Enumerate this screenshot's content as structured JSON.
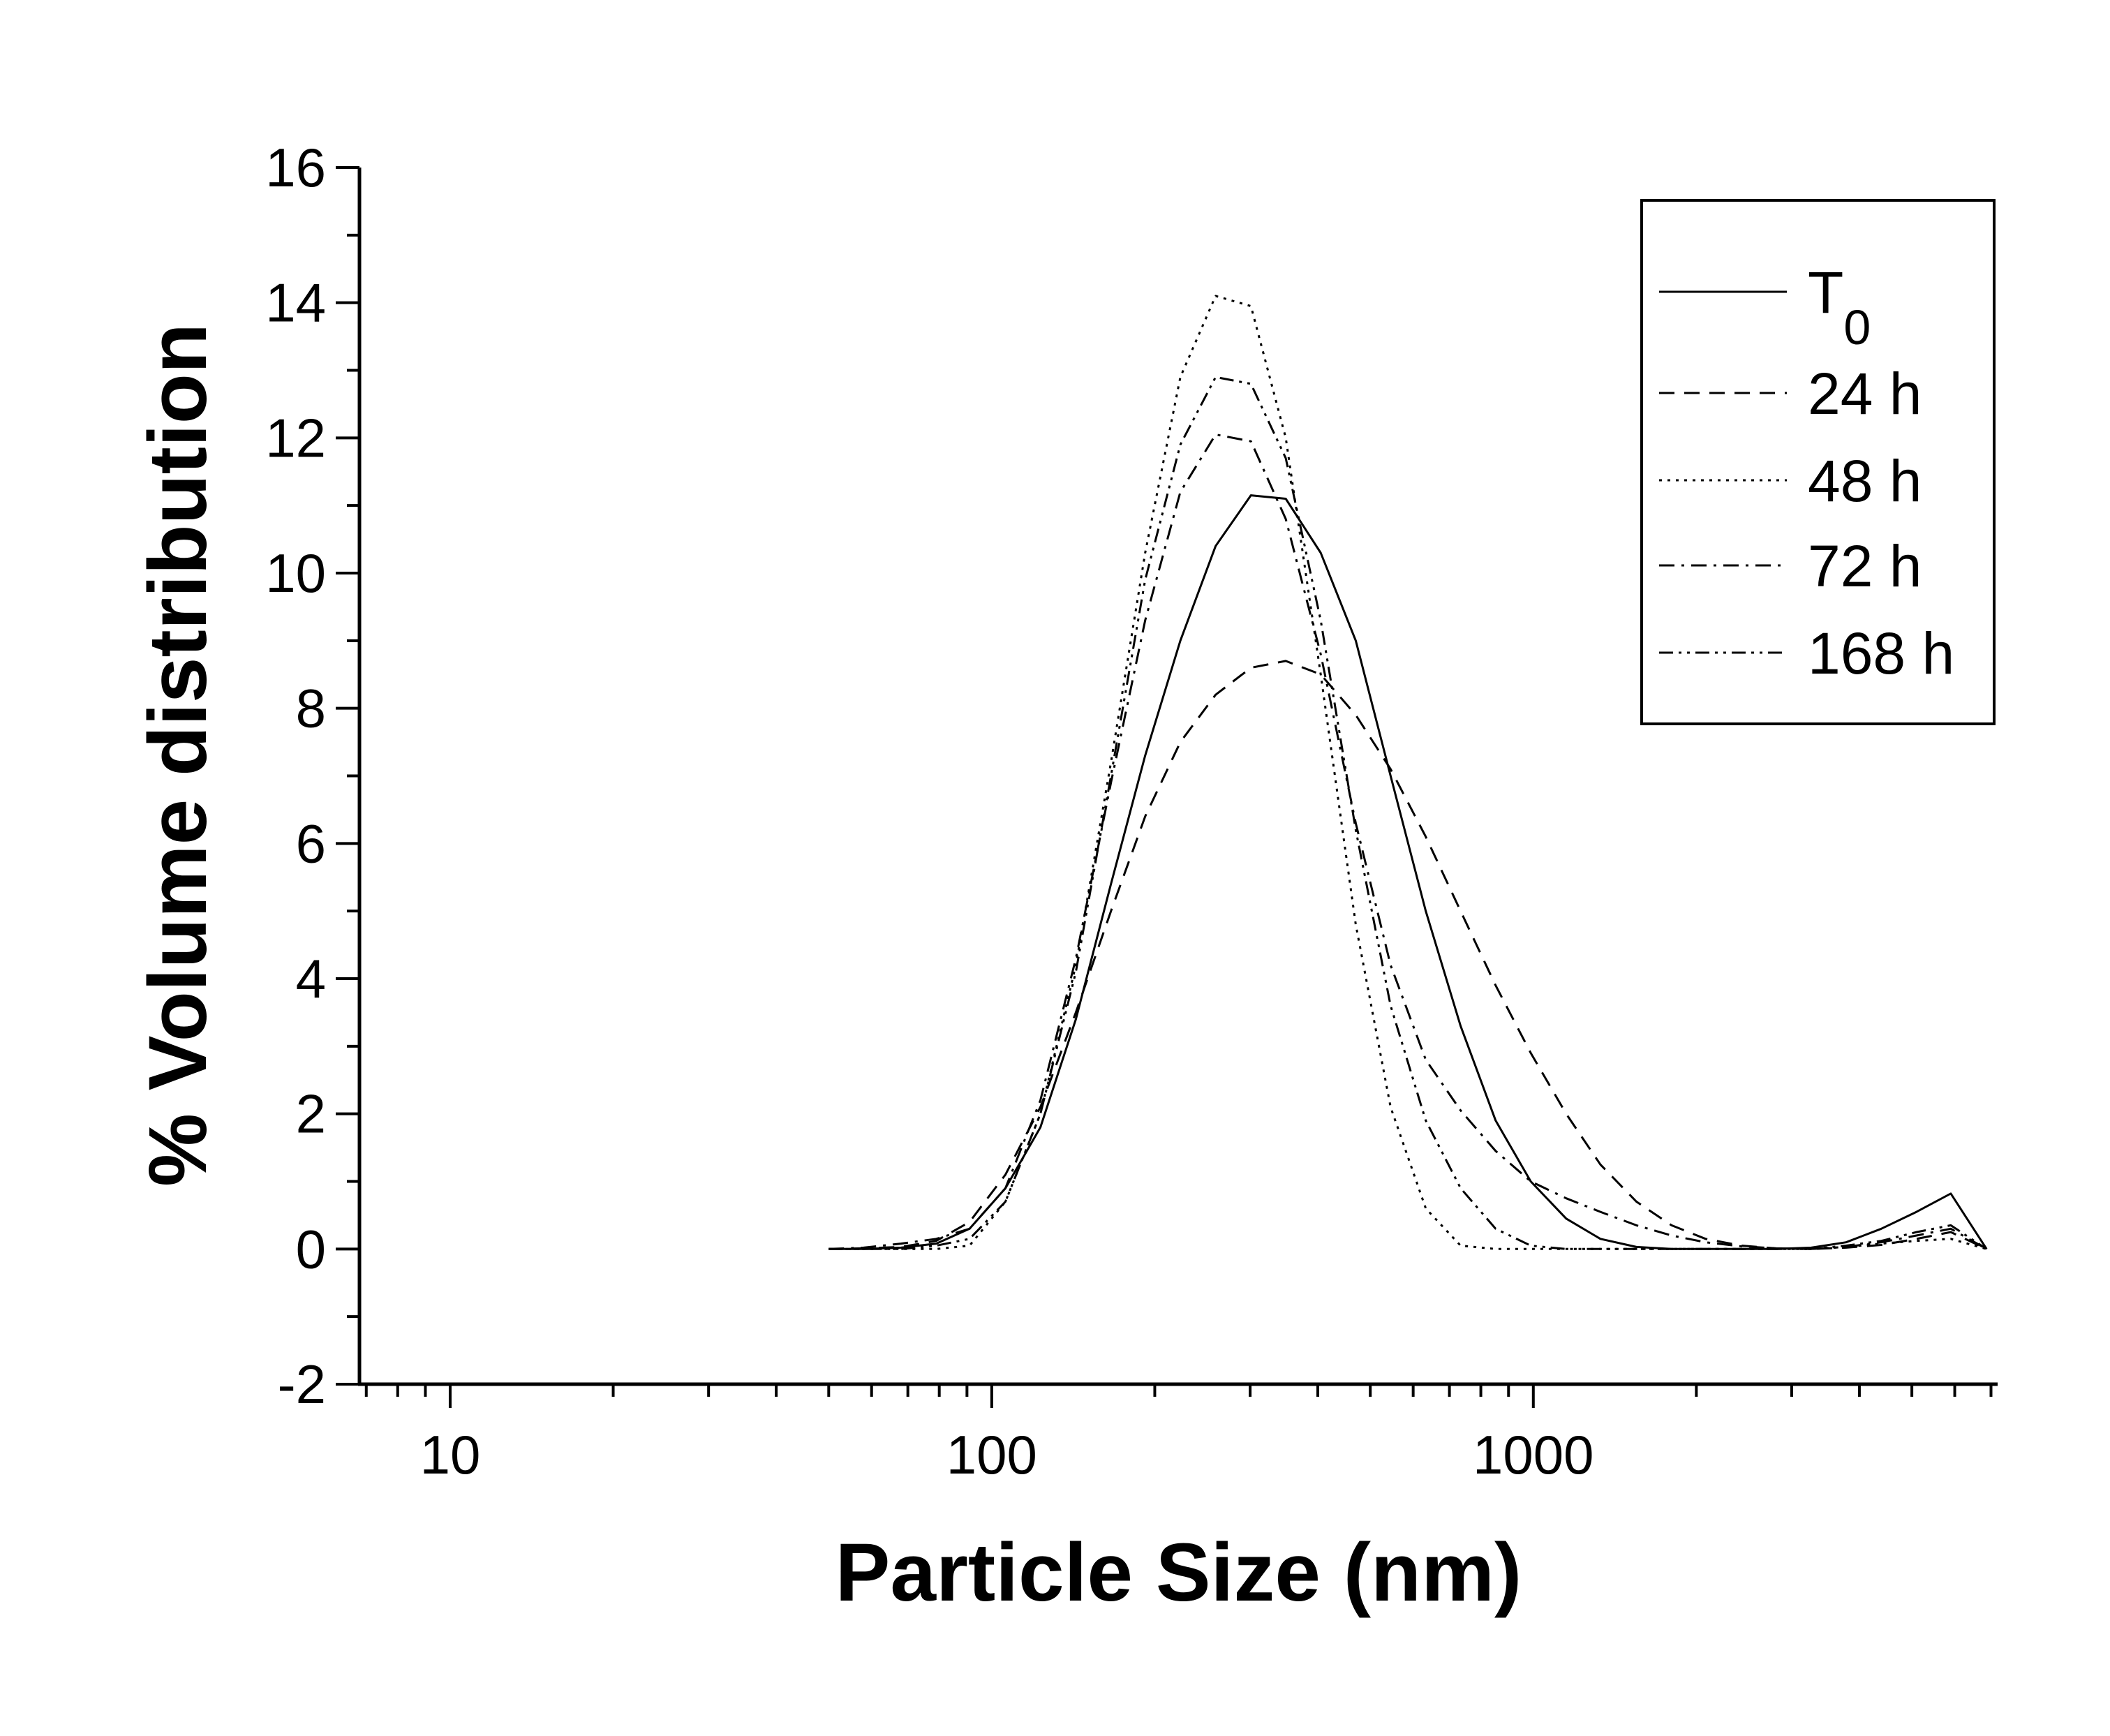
{
  "chart_data": {
    "type": "line",
    "xlabel": "Particle Size (nm)",
    "ylabel": "% Volume distribution",
    "x_scale": "log",
    "xlim": [
      6.8,
      7200
    ],
    "ylim": [
      -2,
      16
    ],
    "x_tick_labels": [
      "10",
      "100",
      "1000"
    ],
    "y_tick_labels": [
      "-2",
      "0",
      "2",
      "4",
      "6",
      "8",
      "10",
      "12",
      "14",
      "16"
    ],
    "grid": false,
    "legend_position": "top-right",
    "x": [
      50,
      58,
      68,
      79,
      91,
      106,
      123,
      143,
      166,
      192,
      223,
      259,
      301,
      349,
      405,
      470,
      545,
      633,
      734,
      852,
      989,
      1150,
      1330,
      1550,
      1800,
      2080,
      2420,
      2810,
      3260,
      3780,
      4390,
      5100,
      5900,
      6870
    ],
    "series": [
      {
        "name": "T0",
        "legend_main": "T",
        "legend_sub": "0",
        "dash": "",
        "values": [
          0,
          0,
          0.02,
          0.08,
          0.3,
          0.9,
          1.8,
          3.4,
          5.4,
          7.3,
          9.0,
          10.4,
          11.15,
          11.1,
          10.3,
          9.0,
          7.0,
          5.0,
          3.3,
          1.9,
          1.0,
          0.45,
          0.15,
          0.03,
          0,
          0,
          0,
          0,
          0.02,
          0.1,
          0.3,
          0.55,
          0.82,
          0
        ]
      },
      {
        "name": "24 h",
        "dash": "22,14",
        "values": [
          0,
          0.01,
          0.03,
          0.12,
          0.4,
          1.1,
          2.1,
          3.5,
          5.0,
          6.4,
          7.5,
          8.2,
          8.6,
          8.7,
          8.5,
          7.9,
          7.1,
          6.1,
          5.0,
          3.9,
          2.9,
          2.0,
          1.25,
          0.7,
          0.35,
          0.15,
          0.05,
          0.01,
          0,
          0.02,
          0.06,
          0.15,
          0.25,
          0
        ]
      },
      {
        "name": "48 h",
        "dash": "4,8",
        "values": [
          0,
          0,
          0,
          0,
          0.05,
          0.7,
          2.0,
          4.2,
          7.2,
          10.3,
          12.9,
          14.1,
          13.95,
          12.0,
          8.5,
          4.8,
          2.1,
          0.6,
          0.05,
          0,
          0,
          0,
          0,
          0,
          0,
          0,
          0,
          0,
          0,
          0.03,
          0.08,
          0.12,
          0.15,
          0
        ]
      },
      {
        "name": "72 h",
        "dash": "22,10,4,10",
        "values": [
          0,
          0.02,
          0.08,
          0.15,
          0.3,
          0.9,
          2.2,
          4.3,
          6.9,
          9.3,
          11.2,
          12.05,
          11.95,
          10.8,
          8.8,
          6.3,
          4.2,
          2.8,
          2.05,
          1.45,
          1.0,
          0.75,
          0.55,
          0.35,
          0.2,
          0.1,
          0.04,
          0.01,
          0,
          0.03,
          0.1,
          0.2,
          0.3,
          0
        ]
      },
      {
        "name": "168 h",
        "dash": "20,8,4,8,4,8",
        "values": [
          0,
          0,
          0,
          0.05,
          0.15,
          0.7,
          2.0,
          4.1,
          7.0,
          9.9,
          11.9,
          12.9,
          12.8,
          11.7,
          9.3,
          6.2,
          3.6,
          1.9,
          0.9,
          0.3,
          0.05,
          0,
          0,
          0,
          0,
          0,
          0,
          0,
          0,
          0.05,
          0.12,
          0.25,
          0.35,
          0
        ]
      }
    ]
  }
}
